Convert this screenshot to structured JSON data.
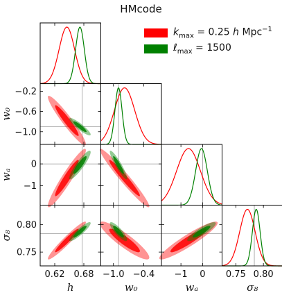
{
  "title": "HMcode",
  "legend": [
    {
      "label": "k_max = 0.25 h Mpc⁻¹",
      "label_main": "k",
      "label_sub": "max",
      "label_rest": " = 0.25 ",
      "label_italic": "h",
      "label_unit": " Mpc",
      "label_sup": "−1",
      "color": "#ff0000"
    },
    {
      "label": "ℓ_max = 1500",
      "label_main": "ℓ",
      "label_sub": "max",
      "label_rest": " = 1500",
      "label_italic": "",
      "label_unit": "",
      "label_sup": "",
      "color": "#008000"
    }
  ],
  "chart_data": {
    "type": "triangle_corner_plot",
    "title": "HMcode",
    "parameters": [
      {
        "name": "h",
        "label": "h",
        "ticks": [
          0.62,
          0.68
        ],
        "tick_labels": [
          "0.62",
          "0.68"
        ],
        "range": [
          0.59,
          0.715
        ],
        "marker": 0.6766
      },
      {
        "name": "w0",
        "label": "w₀",
        "ticks": [
          -1.0,
          -0.4
        ],
        "tick_labels": [
          "−1.0",
          "−0.4"
        ],
        "yticks": [
          -0.2,
          -0.6,
          -1.0
        ],
        "ytick_labels": [
          "−0.2",
          "−0.6",
          "−1.0"
        ],
        "range": [
          -1.25,
          -0.05
        ],
        "marker": -0.9
      },
      {
        "name": "wa",
        "label": "wₐ",
        "ticks": [
          -1,
          0
        ],
        "tick_labels": [
          "−1",
          "0"
        ],
        "yticks": [
          0,
          -1
        ],
        "ytick_labels": [
          "0",
          "−1"
        ],
        "range": [
          -1.9,
          0.9
        ],
        "marker": 0.0
      },
      {
        "name": "sigma8",
        "label": "σ₈",
        "ticks": [
          0.75,
          0.8
        ],
        "tick_labels": [
          "0.75",
          "0.80"
        ],
        "yticks": [
          0.8,
          0.75
        ],
        "ytick_labels": [
          "0.80",
          "0.75"
        ],
        "range": [
          0.725,
          0.835
        ],
        "marker": 0.7835
      }
    ],
    "series": [
      {
        "name": "k_max = 0.25 h Mpc⁻¹",
        "color": "#ff0000",
        "means": [
          0.645,
          -0.78,
          -0.65,
          0.771
        ],
        "sigmas": [
          0.016,
          0.2,
          0.55,
          0.014
        ],
        "correlations": [
          [
            1,
            -0.95,
            0.95,
            0.96
          ],
          [
            -0.95,
            1,
            -0.97,
            -0.9
          ],
          [
            0.95,
            -0.97,
            1,
            0.93
          ],
          [
            0.96,
            -0.9,
            0.93,
            1
          ]
        ]
      },
      {
        "name": "ℓ_max = 1500",
        "color": "#008000",
        "means": [
          0.672,
          -0.9,
          -0.05,
          0.787
        ],
        "sigmas": [
          0.009,
          0.07,
          0.27,
          0.007
        ],
        "correlations": [
          [
            1,
            -0.9,
            0.9,
            0.9
          ],
          [
            -0.9,
            1,
            -0.92,
            -0.85
          ],
          [
            0.9,
            -0.92,
            1,
            0.88
          ],
          [
            0.9,
            -0.85,
            0.88,
            1
          ]
        ]
      }
    ],
    "contour_levels": [
      "68%",
      "95%"
    ],
    "grid": false,
    "legend_position": "top-right"
  }
}
